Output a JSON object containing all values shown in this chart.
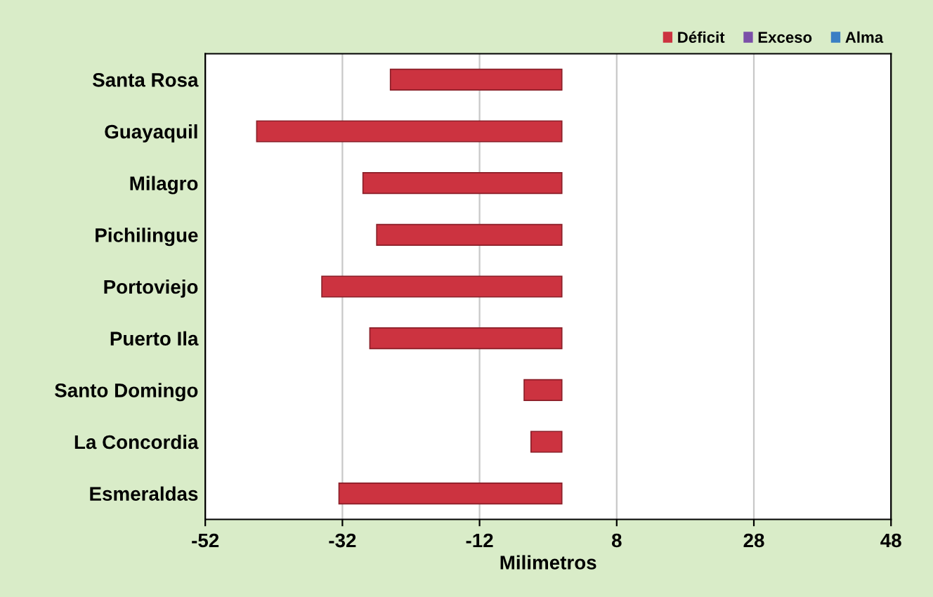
{
  "chart_data": {
    "type": "bar",
    "orientation": "horizontal",
    "xlabel": "Milimetros",
    "categories": [
      "Santa Rosa",
      "Guayaquil",
      "Milagro",
      "Pichilingue",
      "Portoviejo",
      "Puerto Ila",
      "Santo Domingo",
      "La Concordia",
      "Esmeraldas"
    ],
    "series": [
      {
        "name": "Déficit",
        "color": "#cc3340",
        "values": [
          -25,
          -44.5,
          -29,
          -27,
          -35,
          -28,
          -5.5,
          -4.5,
          -32.5
        ]
      },
      {
        "name": "Exceso",
        "color": "#7b4fa8",
        "values": [
          null,
          null,
          null,
          null,
          null,
          null,
          null,
          null,
          null
        ]
      },
      {
        "name": "Alma",
        "color": "#3a7fc4",
        "values": [
          null,
          null,
          null,
          null,
          null,
          null,
          null,
          null,
          null
        ]
      }
    ],
    "xlim": [
      -52,
      48
    ],
    "xticks": [
      -52,
      -32,
      -12,
      8,
      28,
      48
    ],
    "grid": "x",
    "legend": "top right"
  }
}
